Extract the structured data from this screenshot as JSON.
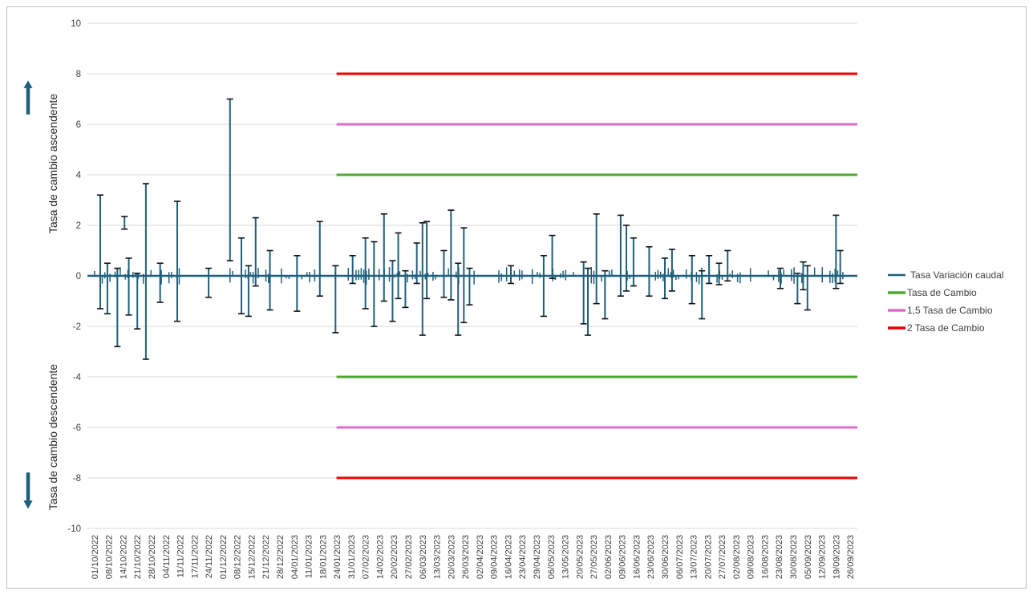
{
  "chart_data": {
    "type": "line",
    "xlabel": "",
    "ylabel_top": "Tasa de cambio ascendente",
    "ylabel_bottom": "Tasa de cambio descendente",
    "ylim": [
      -10,
      10
    ],
    "yticks": [
      "10",
      "8",
      "6",
      "4",
      "2",
      "0",
      "-2",
      "-4",
      "-6",
      "-8",
      "-10"
    ],
    "grid": true,
    "legend_position": "right",
    "x_tick_labels": [
      "01/10/2022",
      "08/10/2022",
      "14/10/2022",
      "21/10/2022",
      "28/10/2022",
      "04/11/2022",
      "11/11/2022",
      "17/11/2022",
      "24/11/2022",
      "01/12/2022",
      "08/12/2022",
      "15/12/2022",
      "21/12/2022",
      "28/12/2022",
      "04/01/2023",
      "11/01/2023",
      "18/01/2023",
      "24/01/2023",
      "31/01/2023",
      "07/02/2023",
      "14/02/2023",
      "20/02/2023",
      "27/02/2023",
      "06/03/2023",
      "13/03/2023",
      "20/03/2023",
      "26/03/2023",
      "02/04/2023",
      "09/04/2023",
      "16/04/2023",
      "23/04/2023",
      "29/04/2023",
      "06/05/2023",
      "13/05/2023",
      "20/05/2023",
      "27/05/2023",
      "02/06/2023",
      "09/06/2023",
      "16/06/2023",
      "23/06/2023",
      "30/06/2023",
      "06/07/2023",
      "13/07/2023",
      "20/07/2023",
      "27/07/2023",
      "02/08/2023",
      "09/08/2023",
      "16/08/2023",
      "23/08/2023",
      "30/08/2023",
      "05/09/2023",
      "12/09/2023",
      "19/09/2023",
      "26/09/2023"
    ],
    "series": [
      {
        "name": "Tasa Variación caudal",
        "color": "#1f5f7a",
        "style": "error-bars",
        "spikes": [
          {
            "x": 0.4,
            "hi": 3.2,
            "lo": -1.3
          },
          {
            "x": 0.9,
            "hi": 0.5,
            "lo": -1.5
          },
          {
            "x": 1.6,
            "hi": 0.3,
            "lo": -2.8
          },
          {
            "x": 2.1,
            "hi": 2.35,
            "lo": 1.85
          },
          {
            "x": 2.4,
            "hi": 0.7,
            "lo": -1.55
          },
          {
            "x": 3.0,
            "hi": 0.1,
            "lo": -2.1
          },
          {
            "x": 3.6,
            "hi": 3.65,
            "lo": -3.3
          },
          {
            "x": 4.6,
            "hi": 0.5,
            "lo": -1.05
          },
          {
            "x": 5.8,
            "hi": 2.95,
            "lo": -1.8
          },
          {
            "x": 8.0,
            "hi": 0.3,
            "lo": -0.85
          },
          {
            "x": 9.5,
            "hi": 7.0,
            "lo": 0.6
          },
          {
            "x": 10.3,
            "hi": 1.5,
            "lo": -1.5
          },
          {
            "x": 10.8,
            "hi": 0.4,
            "lo": -1.6
          },
          {
            "x": 11.3,
            "hi": 2.3,
            "lo": -0.4
          },
          {
            "x": 12.3,
            "hi": 1.0,
            "lo": -1.35
          },
          {
            "x": 14.2,
            "hi": 0.8,
            "lo": -1.4
          },
          {
            "x": 15.8,
            "hi": 2.15,
            "lo": -0.8
          },
          {
            "x": 16.9,
            "hi": 0.4,
            "lo": -2.25
          },
          {
            "x": 18.1,
            "hi": 0.8,
            "lo": -0.3
          },
          {
            "x": 19.0,
            "hi": 1.5,
            "lo": -1.3
          },
          {
            "x": 19.6,
            "hi": 1.35,
            "lo": -2.0
          },
          {
            "x": 20.3,
            "hi": 2.45,
            "lo": -1.0
          },
          {
            "x": 20.9,
            "hi": 0.6,
            "lo": -1.8
          },
          {
            "x": 21.3,
            "hi": 1.7,
            "lo": -0.9
          },
          {
            "x": 21.8,
            "hi": 0.2,
            "lo": -1.25
          },
          {
            "x": 22.6,
            "hi": 1.3,
            "lo": -0.3
          },
          {
            "x": 23.0,
            "hi": 2.1,
            "lo": -2.35
          },
          {
            "x": 23.3,
            "hi": 2.15,
            "lo": -0.9
          },
          {
            "x": 24.5,
            "hi": 1.0,
            "lo": -0.85
          },
          {
            "x": 25.0,
            "hi": 2.6,
            "lo": -0.95
          },
          {
            "x": 25.5,
            "hi": 0.5,
            "lo": -2.35
          },
          {
            "x": 25.9,
            "hi": 1.9,
            "lo": -1.85
          },
          {
            "x": 26.3,
            "hi": 0.3,
            "lo": -1.15
          },
          {
            "x": 29.2,
            "hi": 0.4,
            "lo": -0.3
          },
          {
            "x": 31.5,
            "hi": 0.8,
            "lo": -1.6
          },
          {
            "x": 32.1,
            "hi": 1.6,
            "lo": -0.1
          },
          {
            "x": 34.3,
            "hi": 0.55,
            "lo": -1.9
          },
          {
            "x": 34.6,
            "hi": 0.3,
            "lo": -2.35
          },
          {
            "x": 35.2,
            "hi": 2.45,
            "lo": -1.1
          },
          {
            "x": 35.8,
            "hi": 0.2,
            "lo": -1.7
          },
          {
            "x": 36.9,
            "hi": 2.4,
            "lo": -0.8
          },
          {
            "x": 37.3,
            "hi": 2.0,
            "lo": -0.6
          },
          {
            "x": 37.8,
            "hi": 1.5,
            "lo": -0.4
          },
          {
            "x": 38.9,
            "hi": 1.15,
            "lo": -0.8
          },
          {
            "x": 40.0,
            "hi": 0.7,
            "lo": -0.9
          },
          {
            "x": 40.5,
            "hi": 1.05,
            "lo": -0.6
          },
          {
            "x": 41.9,
            "hi": 0.8,
            "lo": -1.1
          },
          {
            "x": 42.6,
            "hi": 0.2,
            "lo": -1.7
          },
          {
            "x": 43.1,
            "hi": 0.8,
            "lo": -0.3
          },
          {
            "x": 43.8,
            "hi": 0.5,
            "lo": -0.35
          },
          {
            "x": 44.4,
            "hi": 1.0,
            "lo": -0.2
          },
          {
            "x": 48.1,
            "hi": 0.3,
            "lo": -0.5
          },
          {
            "x": 49.3,
            "hi": 0.1,
            "lo": -1.1
          },
          {
            "x": 49.7,
            "hi": 0.55,
            "lo": -0.55
          },
          {
            "x": 50.0,
            "hi": 0.4,
            "lo": -1.35
          },
          {
            "x": 52.0,
            "hi": 2.4,
            "lo": -0.5
          },
          {
            "x": 52.3,
            "hi": 1.0,
            "lo": -0.3
          }
        ]
      },
      {
        "name": "Tasa de Cambio",
        "color": "#4ea72e",
        "x_start": "24/01/2023",
        "values": [
          4,
          -4
        ]
      },
      {
        "name": "1,5 Tasa de Cambio",
        "color": "#d86ecc",
        "x_start": "24/01/2023",
        "values": [
          6,
          -6
        ]
      },
      {
        "name": "2 Tasa de Cambio",
        "color": "#ee0000",
        "x_start": "24/01/2023",
        "values": [
          8,
          -8
        ]
      }
    ]
  }
}
